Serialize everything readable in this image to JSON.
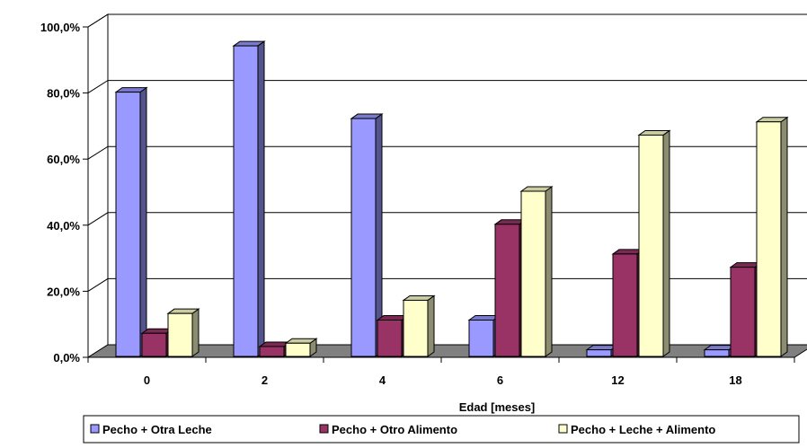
{
  "chart_data": {
    "type": "bar",
    "categories": [
      "0",
      "2",
      "4",
      "6",
      "12",
      "18"
    ],
    "xlabel": "Edad [meses]",
    "ylabel": "",
    "title": "",
    "ylim": [
      0,
      100
    ],
    "y_ticks": [
      "0,0%",
      "20,0%",
      "40,0%",
      "60,0%",
      "80,0%",
      "100,0%"
    ],
    "grid": true,
    "legend_position": "bottom",
    "series": [
      {
        "name": "Pecho + Otra Leche",
        "values": [
          80.0,
          94.0,
          72.0,
          11.0,
          2.0,
          2.0
        ],
        "color": "#9999FF"
      },
      {
        "name": "Pecho + Otro Alimento",
        "values": [
          7.0,
          3.0,
          11.0,
          40.0,
          31.0,
          27.0
        ],
        "color": "#993366"
      },
      {
        "name": "Pecho + Leche + Alimento",
        "values": [
          13.0,
          4.0,
          17.0,
          50.0,
          67.0,
          71.0
        ],
        "color": "#FFFFCC"
      }
    ]
  }
}
